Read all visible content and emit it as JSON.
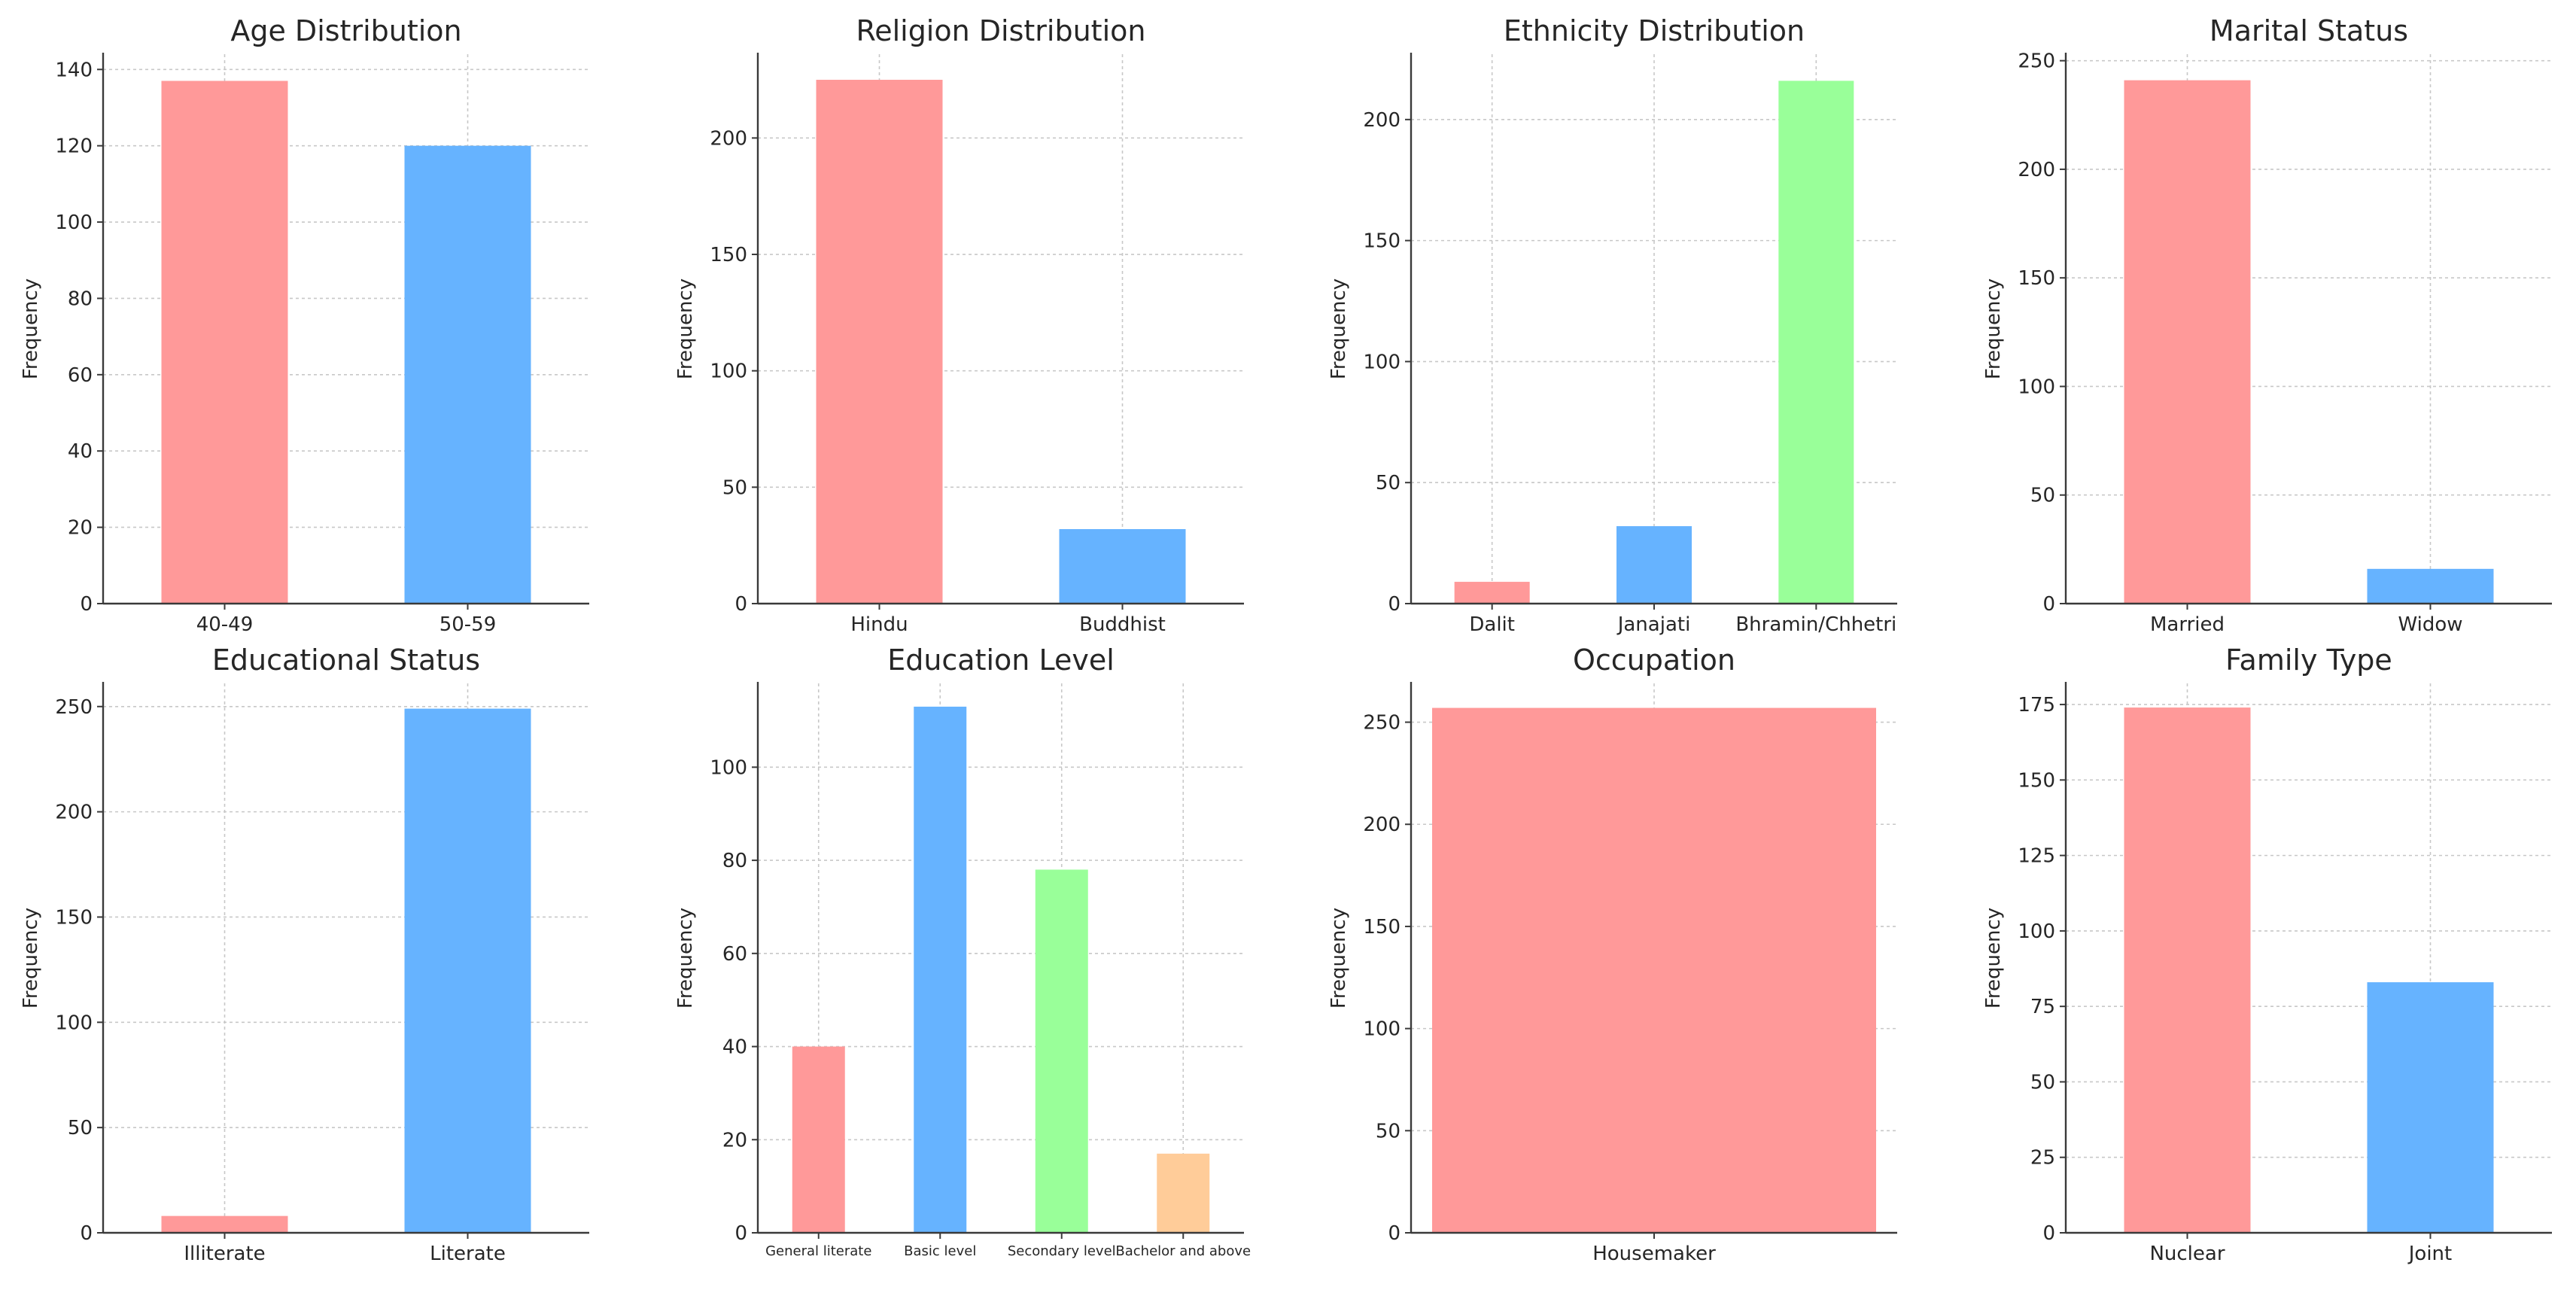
{
  "figure": {
    "ylabel_common": "Frequency"
  },
  "chart_data": [
    {
      "type": "bar",
      "title": "Age Distribution",
      "ylabel": "Frequency",
      "categories": [
        "40-49",
        "50-59"
      ],
      "values": [
        137,
        120
      ],
      "colors": [
        "#ff9999",
        "#66b3ff"
      ],
      "ylim": [
        0,
        144
      ],
      "yticks": [
        0,
        20,
        40,
        60,
        80,
        100,
        120,
        140
      ],
      "grid": true
    },
    {
      "type": "bar",
      "title": "Religion Distribution",
      "ylabel": "Frequency",
      "categories": [
        "Hindu",
        "Buddhist"
      ],
      "values": [
        225,
        32
      ],
      "colors": [
        "#ff9999",
        "#66b3ff"
      ],
      "ylim": [
        0,
        236
      ],
      "yticks": [
        0,
        50,
        100,
        150,
        200
      ],
      "grid": true
    },
    {
      "type": "bar",
      "title": "Ethnicity Distribution",
      "ylabel": "Frequency",
      "categories": [
        "Dalit",
        "Janajati",
        "Bhramin/Chhetri"
      ],
      "values": [
        9,
        32,
        216
      ],
      "colors": [
        "#ff9999",
        "#66b3ff",
        "#99ff99"
      ],
      "ylim": [
        0,
        227
      ],
      "yticks": [
        0,
        50,
        100,
        150,
        200
      ],
      "grid": true
    },
    {
      "type": "bar",
      "title": "Marital Status",
      "ylabel": "Frequency",
      "categories": [
        "Married",
        "Widow"
      ],
      "values": [
        241,
        16
      ],
      "colors": [
        "#ff9999",
        "#66b3ff"
      ],
      "ylim": [
        0,
        253
      ],
      "yticks": [
        0,
        50,
        100,
        150,
        200,
        250
      ],
      "grid": true
    },
    {
      "type": "bar",
      "title": "Educational Status",
      "ylabel": "Frequency",
      "categories": [
        "Illiterate",
        "Literate"
      ],
      "values": [
        8,
        249
      ],
      "colors": [
        "#ff9999",
        "#66b3ff"
      ],
      "ylim": [
        0,
        261
      ],
      "yticks": [
        0,
        50,
        100,
        150,
        200,
        250
      ],
      "grid": true
    },
    {
      "type": "bar",
      "title": "Education Level",
      "ylabel": "Frequency",
      "categories": [
        "General literate",
        "Basic level",
        "Secondary level",
        "Bachelor and above"
      ],
      "values": [
        40,
        113,
        78,
        17
      ],
      "colors": [
        "#ff9999",
        "#66b3ff",
        "#99ff99",
        "#ffcc99"
      ],
      "ylim": [
        0,
        118
      ],
      "yticks": [
        0,
        20,
        40,
        60,
        80,
        100
      ],
      "grid": true
    },
    {
      "type": "bar",
      "title": "Occupation",
      "ylabel": "Frequency",
      "categories": [
        "Housemaker"
      ],
      "values": [
        257
      ],
      "colors": [
        "#ff9999"
      ],
      "ylim": [
        0,
        269
      ],
      "yticks": [
        0,
        50,
        100,
        150,
        200,
        250
      ],
      "grid": true
    },
    {
      "type": "bar",
      "title": "Family Type",
      "ylabel": "Frequency",
      "categories": [
        "Nuclear",
        "Joint"
      ],
      "values": [
        174,
        83
      ],
      "colors": [
        "#ff9999",
        "#66b3ff"
      ],
      "ylim": [
        0,
        182
      ],
      "yticks": [
        0,
        25,
        50,
        75,
        100,
        125,
        150,
        175
      ],
      "grid": true
    }
  ]
}
